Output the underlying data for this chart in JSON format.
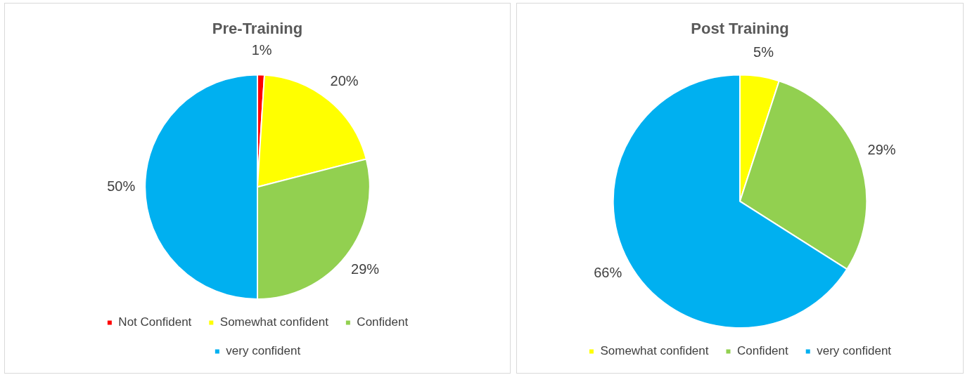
{
  "chart_data": [
    {
      "type": "pie",
      "title": "Pre-Training",
      "categories": [
        "Not Confident",
        "Somewhat confident",
        "Confident",
        "very confident"
      ],
      "values": [
        1,
        20,
        29,
        50
      ],
      "colors": [
        "#ff0000",
        "#ffff00",
        "#92d050",
        "#00b0f0"
      ],
      "value_labels": [
        "1%",
        "20%",
        "29%",
        "50%"
      ],
      "legend": "bottom"
    },
    {
      "type": "pie",
      "title": "Post Training",
      "categories": [
        "Somewhat confident",
        "Confident",
        "very confident"
      ],
      "values": [
        5,
        29,
        66
      ],
      "colors": [
        "#ffff00",
        "#92d050",
        "#00b0f0"
      ],
      "value_labels": [
        "5%",
        "29%",
        "66%"
      ],
      "legend": "bottom"
    }
  ]
}
